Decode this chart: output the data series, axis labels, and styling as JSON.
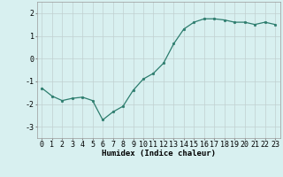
{
  "x": [
    0,
    1,
    2,
    3,
    4,
    5,
    6,
    7,
    8,
    9,
    10,
    11,
    12,
    13,
    14,
    15,
    16,
    17,
    18,
    19,
    20,
    21,
    22,
    23
  ],
  "y": [
    -1.3,
    -1.65,
    -1.85,
    -1.75,
    -1.7,
    -1.85,
    -2.7,
    -2.35,
    -2.1,
    -1.4,
    -0.9,
    -0.65,
    -0.2,
    0.65,
    1.3,
    1.6,
    1.75,
    1.75,
    1.7,
    1.6,
    1.6,
    1.5,
    1.6,
    1.5
  ],
  "xlabel": "Humidex (Indice chaleur)",
  "xlabel_fontsize": 6.5,
  "line_color": "#2d7d6e",
  "marker_size": 2.0,
  "line_width": 0.9,
  "bg_color": "#d8f0f0",
  "grid_color": "#c0d0d0",
  "tick_fontsize": 6,
  "ylim": [
    -3.5,
    2.5
  ],
  "xlim": [
    -0.5,
    23.5
  ],
  "yticks": [
    -3,
    -2,
    -1,
    0,
    1,
    2
  ],
  "xticks": [
    0,
    1,
    2,
    3,
    4,
    5,
    6,
    7,
    8,
    9,
    10,
    11,
    12,
    13,
    14,
    15,
    16,
    17,
    18,
    19,
    20,
    21,
    22,
    23
  ]
}
